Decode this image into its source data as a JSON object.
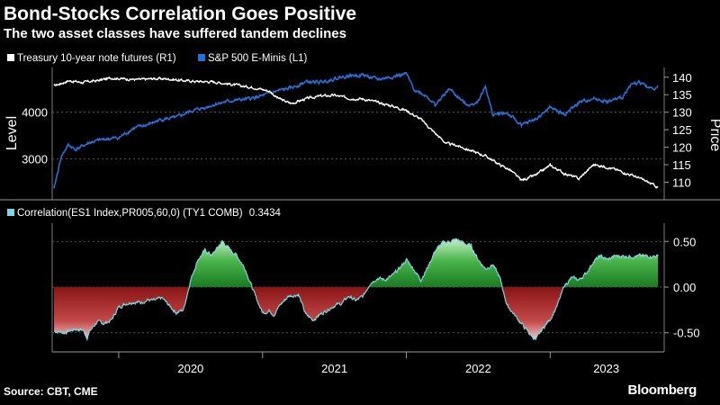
{
  "header": {
    "title": "Bond-Stocks Correlation Goes Positive",
    "subtitle": "The two asset classes have suffered tandem declines"
  },
  "footer": {
    "source": "Source: CBT, CME",
    "brand": "Bloomberg"
  },
  "colors": {
    "background": "#000000",
    "treasury": "#ffffff",
    "sp500": "#2a6fd4",
    "correlation_line": "#7fd6e0",
    "correlation_positive": "#2e9a3a",
    "correlation_negative": "#a01e1e",
    "grid": "#6a6a6a"
  },
  "chart_data": [
    {
      "type": "line",
      "legend_position": "top-left",
      "grid": true,
      "x_ticks": [
        "2020",
        "2021",
        "2022",
        "2023"
      ],
      "left_axis": {
        "label": "Level",
        "ticks": [
          "3000",
          "4000"
        ],
        "range": [
          2200,
          4900
        ]
      },
      "right_axis": {
        "label": "Price",
        "ticks": [
          "110",
          "115",
          "120",
          "125",
          "130",
          "135",
          "140"
        ],
        "range": [
          106,
          142
        ]
      },
      "series": [
        {
          "name": "Treasury 10-year note futures (R1)",
          "axis": "right",
          "x": [
            2019.55,
            2019.65,
            2019.75,
            2019.85,
            2019.95,
            2020.05,
            2020.15,
            2020.25,
            2020.35,
            2020.45,
            2020.55,
            2020.65,
            2020.75,
            2020.85,
            2020.95,
            2021.05,
            2021.1,
            2021.15,
            2021.2,
            2021.3,
            2021.4,
            2021.5,
            2021.6,
            2021.7,
            2021.8,
            2021.9,
            2022.0,
            2022.1,
            2022.2,
            2022.28,
            2022.35,
            2022.45,
            2022.55,
            2022.65,
            2022.72,
            2022.8,
            2022.9,
            2023.0,
            2023.1,
            2023.2,
            2023.3,
            2023.4,
            2023.5,
            2023.6,
            2023.68,
            2023.75
          ],
          "values": [
            137.5,
            139.0,
            138.5,
            139.0,
            139.8,
            139.5,
            139.3,
            139.6,
            139.5,
            139.0,
            138.8,
            138.7,
            138.2,
            137.5,
            137.0,
            136.0,
            134.2,
            133.2,
            132.5,
            133.8,
            134.6,
            134.8,
            134.0,
            133.8,
            132.8,
            131.8,
            130.5,
            128.0,
            124.0,
            121.0,
            120.5,
            119.0,
            117.5,
            115.0,
            113.5,
            110.5,
            112.0,
            114.8,
            112.5,
            111.0,
            115.0,
            114.3,
            113.0,
            111.5,
            110.0,
            108.5
          ]
        },
        {
          "name": "S&P 500 E-Minis (L1)",
          "axis": "left",
          "x": [
            2019.55,
            2019.6,
            2019.65,
            2019.7,
            2019.8,
            2019.9,
            2020.0,
            2020.1,
            2020.2,
            2020.3,
            2020.4,
            2020.5,
            2020.6,
            2020.7,
            2020.8,
            2020.9,
            2021.0,
            2021.1,
            2021.2,
            2021.3,
            2021.4,
            2021.5,
            2021.6,
            2021.7,
            2021.8,
            2021.9,
            2022.0,
            2022.05,
            2022.15,
            2022.2,
            2022.3,
            2022.4,
            2022.45,
            2022.5,
            2022.55,
            2022.6,
            2022.7,
            2022.8,
            2022.9,
            2023.0,
            2023.1,
            2023.2,
            2023.3,
            2023.4,
            2023.5,
            2023.55,
            2023.62,
            2023.7,
            2023.75
          ],
          "values": [
            2350,
            3050,
            3300,
            3200,
            3350,
            3420,
            3450,
            3650,
            3730,
            3850,
            3880,
            4020,
            4100,
            4200,
            4250,
            4280,
            4350,
            4450,
            4520,
            4650,
            4640,
            4720,
            4780,
            4800,
            4700,
            4760,
            4820,
            4500,
            4330,
            4150,
            4500,
            4200,
            4150,
            4250,
            4550,
            3950,
            3980,
            3720,
            3850,
            4100,
            3950,
            4200,
            4300,
            4220,
            4310,
            4560,
            4650,
            4500,
            4550
          ]
        }
      ]
    },
    {
      "type": "area",
      "legend_position": "top-left",
      "grid": true,
      "x_ticks": [
        "2020",
        "2021",
        "2022",
        "2023"
      ],
      "right_axis": {
        "ticks": [
          "0.50",
          "0.00",
          "-0.50"
        ],
        "range": [
          -0.68,
          0.68
        ]
      },
      "series": [
        {
          "name": "Correlation(ES1 Index,PR005,60,0) (TY1 COMB)",
          "last_value": "0.3434",
          "x": [
            2019.55,
            2019.62,
            2019.7,
            2019.75,
            2019.78,
            2019.8,
            2019.85,
            2019.9,
            2019.95,
            2020.0,
            2020.05,
            2020.1,
            2020.15,
            2020.2,
            2020.25,
            2020.3,
            2020.35,
            2020.4,
            2020.45,
            2020.5,
            2020.55,
            2020.6,
            2020.65,
            2020.7,
            2020.72,
            2020.75,
            2020.78,
            2020.82,
            2020.88,
            2020.95,
            2021.0,
            2021.05,
            2021.08,
            2021.12,
            2021.18,
            2021.25,
            2021.3,
            2021.35,
            2021.4,
            2021.45,
            2021.5,
            2021.55,
            2021.6,
            2021.65,
            2021.7,
            2021.75,
            2021.8,
            2021.85,
            2021.9,
            2021.95,
            2022.0,
            2022.05,
            2022.1,
            2022.15,
            2022.2,
            2022.25,
            2022.3,
            2022.35,
            2022.4,
            2022.45,
            2022.5,
            2022.55,
            2022.6,
            2022.65,
            2022.7,
            2022.75,
            2022.8,
            2022.85,
            2022.9,
            2022.95,
            2023.0,
            2023.05,
            2023.1,
            2023.15,
            2023.2,
            2023.25,
            2023.3,
            2023.35,
            2023.4,
            2023.45,
            2023.5,
            2023.55,
            2023.6,
            2023.65,
            2023.7,
            2023.75
          ],
          "values": [
            -0.48,
            -0.5,
            -0.46,
            -0.47,
            -0.55,
            -0.48,
            -0.38,
            -0.4,
            -0.36,
            -0.22,
            -0.18,
            -0.16,
            -0.17,
            -0.14,
            -0.15,
            -0.12,
            -0.2,
            -0.28,
            -0.25,
            0.08,
            0.3,
            0.4,
            0.35,
            0.46,
            0.5,
            0.45,
            0.4,
            0.35,
            0.2,
            -0.1,
            -0.28,
            -0.26,
            -0.3,
            -0.2,
            -0.1,
            -0.08,
            -0.3,
            -0.36,
            -0.3,
            -0.25,
            -0.2,
            -0.18,
            -0.1,
            -0.15,
            -0.1,
            0.05,
            0.1,
            0.08,
            0.12,
            0.2,
            0.3,
            0.2,
            0.08,
            0.22,
            0.4,
            0.48,
            0.5,
            0.52,
            0.48,
            0.45,
            0.3,
            0.2,
            0.25,
            0.1,
            -0.2,
            -0.3,
            -0.4,
            -0.5,
            -0.58,
            -0.45,
            -0.35,
            -0.2,
            0.02,
            0.1,
            0.08,
            0.15,
            0.28,
            0.34,
            0.3,
            0.34,
            0.34,
            0.34,
            0.34,
            0.34,
            0.34,
            0.34
          ]
        }
      ]
    }
  ]
}
